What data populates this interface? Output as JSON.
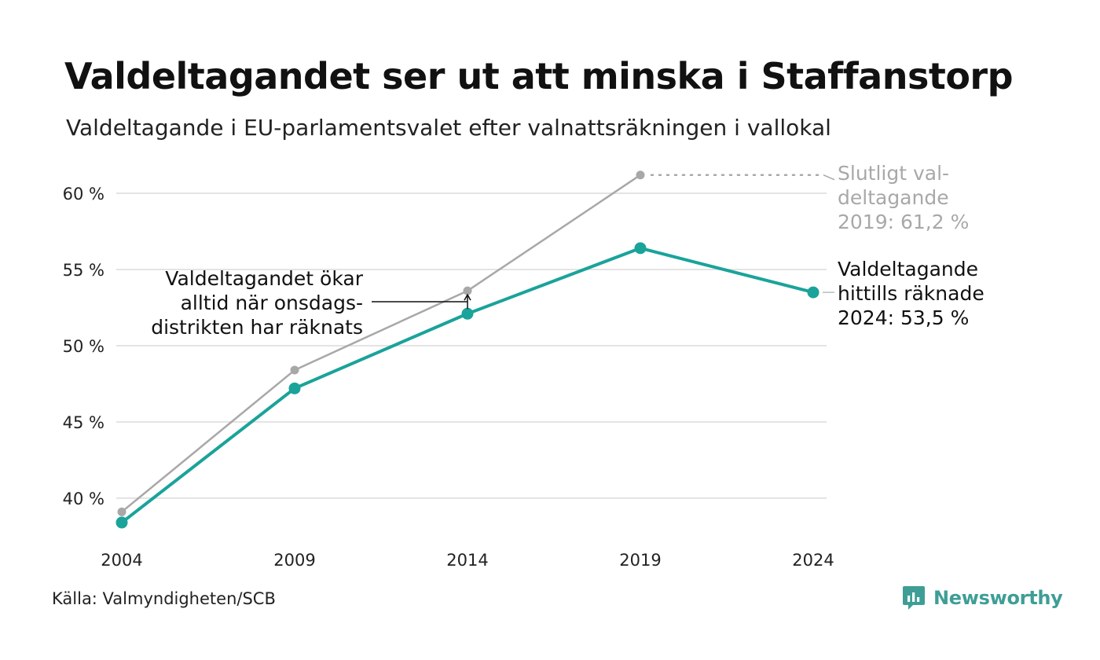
{
  "header": {
    "title": "Valdeltagandet ser ut att minska i Staffanstorp",
    "subtitle": "Valdeltagande i EU-parlamentsvalet efter valnattsräkningen i vallokal"
  },
  "footer": {
    "source": "Källa: Valmyndigheten/SCB",
    "brand": "Newsworthy"
  },
  "colors": {
    "main_series": "#1aa39a",
    "final_series": "#a8a8a8",
    "grid": "#e4e4e4",
    "brand": "#3e9e96"
  },
  "chart_data": {
    "type": "line",
    "x": [
      "2004",
      "2009",
      "2014",
      "2019",
      "2024"
    ],
    "y_ticks": [
      40,
      45,
      50,
      55,
      60
    ],
    "y_tick_labels": [
      "40 %",
      "45 %",
      "50 %",
      "55 %",
      "60 %"
    ],
    "ylim": [
      38,
      62
    ],
    "grid": true,
    "series": [
      {
        "key": "final",
        "values": [
          39.1,
          48.4,
          53.6,
          61.2,
          null
        ]
      },
      {
        "key": "election_night",
        "values": [
          38.4,
          47.2,
          52.1,
          56.4,
          53.5
        ]
      }
    ],
    "annotations": {
      "final_2019": [
        "Slutligt val-",
        "deltagande",
        "2019: 61,2 %"
      ],
      "current_2024": [
        "Valdeltagande",
        "hittills räknade",
        "2024: 53,5 %"
      ],
      "wednesday": [
        "Valdeltagandet ökar",
        "alltid när onsdags-",
        "distrikten har räknats"
      ]
    }
  }
}
